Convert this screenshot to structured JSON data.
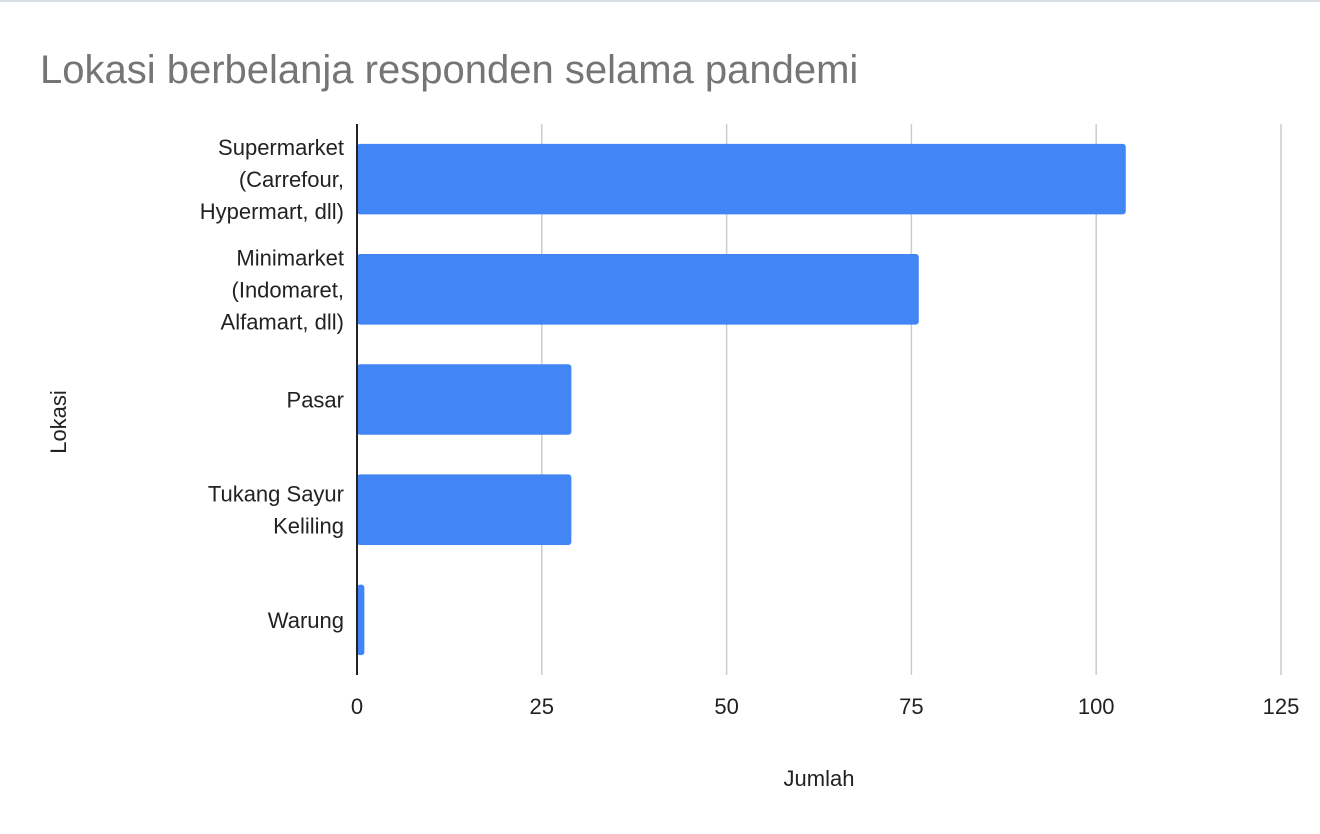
{
  "chart_data": {
    "type": "bar",
    "orientation": "horizontal",
    "title": "Lokasi berbelanja responden selama pandemi",
    "xlabel": "Jumlah",
    "ylabel": "Lokasi",
    "categories": [
      [
        "Supermarket",
        "(Carrefour,",
        "Hypermart, dll)"
      ],
      [
        "Minimarket",
        "(Indomaret,",
        "Alfamart, dll)"
      ],
      [
        "Pasar"
      ],
      [
        "Tukang Sayur",
        "Keliling"
      ],
      [
        "Warung"
      ]
    ],
    "values": [
      104,
      76,
      29,
      29,
      1
    ],
    "xlim": [
      0,
      125
    ],
    "xticks": [
      "0",
      "25",
      "50",
      "75",
      "100",
      "125"
    ],
    "grid": "vertical",
    "legend": "none",
    "colors": {
      "bar": "#4285f4",
      "grid": "#cccccc",
      "axis": "#222222",
      "title": "#757575"
    }
  }
}
